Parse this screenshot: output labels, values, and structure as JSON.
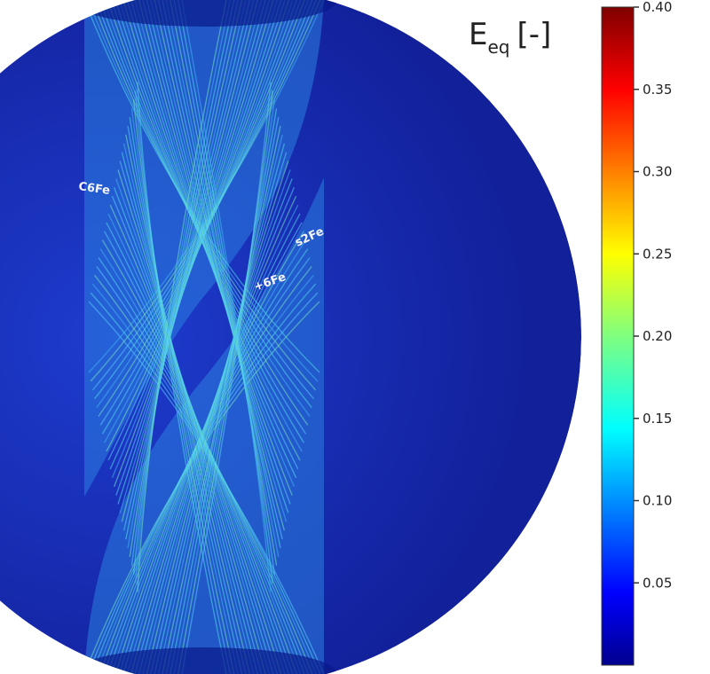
{
  "chart_data": {
    "type": "heatmap",
    "title": "E",
    "title_subscript": "eq",
    "title_unit": "[-]",
    "colormap": "jet",
    "colorbar": {
      "vmin": 0.0,
      "vmax": 0.4,
      "ticks": [
        0.05,
        0.1,
        0.15,
        0.2,
        0.25,
        0.3,
        0.35,
        0.4
      ],
      "tick_labels": [
        "0.05",
        "0.10",
        "0.15",
        "0.20",
        "0.25",
        "0.30",
        "0.35",
        "0.40"
      ],
      "position": "right"
    },
    "field": {
      "shape": "disk",
      "background_value": 0.02,
      "band_value": 0.12,
      "band_peak_value": 0.2,
      "pattern": "hourglass-shaped band of crossing shear lines"
    },
    "annotations": [
      "C6Fe",
      "s2Fe",
      "+6Fe"
    ]
  },
  "colors": {
    "background": "#ffffff",
    "disk_background": "#1a2fb3"
  }
}
